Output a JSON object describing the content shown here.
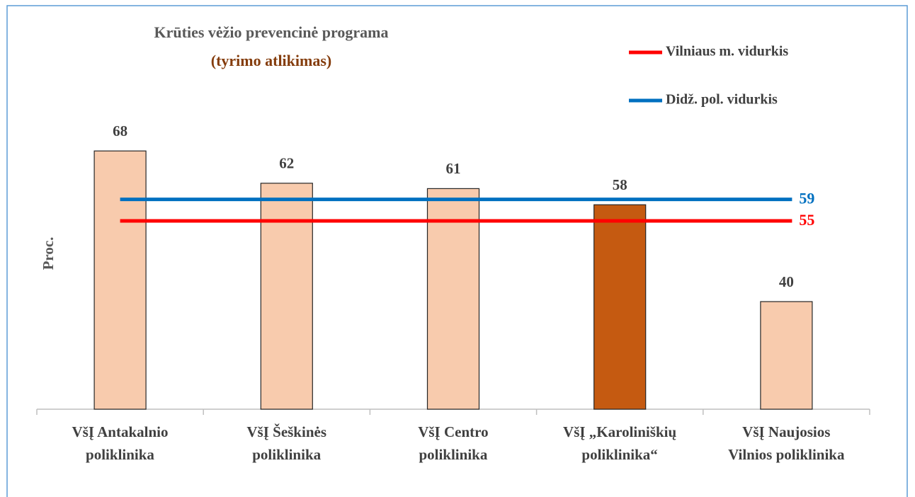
{
  "chart_data": {
    "type": "bar",
    "title": "Krūties vėžio prevencinė programa",
    "subtitle": "(tyrimo atlikimas)",
    "y_label": "Proc.",
    "categories": [
      "VšĮ Antakalnio\npoliklinika",
      "VšĮ Šeškinės\npoliklinika",
      "VšĮ Centro\npoliklinika",
      "VšĮ „Karoliniškių\npoliklinika“",
      "VšĮ Naujosios\nVilnios poliklinika"
    ],
    "values": [
      68,
      62,
      61,
      58,
      40
    ],
    "colors": [
      "#f8cbad",
      "#f8cbad",
      "#f8cbad",
      "#c55a11",
      "#f8cbad"
    ],
    "ylim": [
      20,
      80
    ],
    "reference_lines": [
      {
        "name": "Vilniaus m. vidurkis",
        "value": 55,
        "color": "#ff0000"
      },
      {
        "name": "Didž. pol. vidurkis",
        "value": 59,
        "color": "#0070c0"
      }
    ]
  }
}
